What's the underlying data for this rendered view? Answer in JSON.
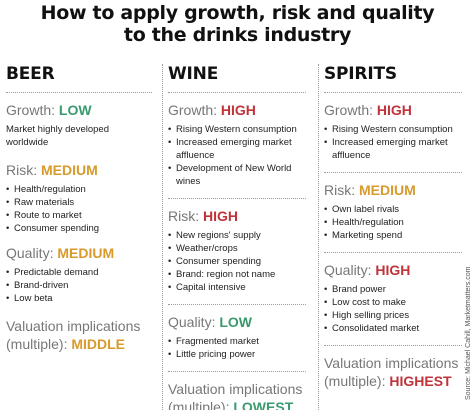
{
  "title": {
    "line1": "How to apply growth, risk and quality",
    "line2": "to the drinks industry"
  },
  "colors": {
    "low": "#3a9a6e",
    "medium": "#d89a2b",
    "high": "#c0333a",
    "heading_grey": "#777777"
  },
  "beer": {
    "name": "BEER",
    "growth": {
      "label": "Growth:",
      "level": "LOW",
      "text": "Market highly developed worldwide"
    },
    "risk": {
      "label": "Risk:",
      "level": "MEDIUM",
      "items": [
        "Health/regulation",
        "Raw materials",
        "Route to market",
        "Consumer spending"
      ]
    },
    "quality": {
      "label": "Quality:",
      "level": "MEDIUM",
      "items": [
        "Predictable demand",
        "Brand-driven",
        "Low beta"
      ]
    },
    "valuation": {
      "line1": "Valuation implications",
      "line2": "(multiple):",
      "level": "MIDDLE"
    }
  },
  "wine": {
    "name": "WINE",
    "growth": {
      "label": "Growth:",
      "level": "HIGH",
      "items": [
        "Rising Western consumption",
        "Increased emerging market affluence",
        "Development of New World wines"
      ]
    },
    "risk": {
      "label": "Risk:",
      "level": "HIGH",
      "items": [
        "New regions' supply",
        "Weather/crops",
        "Consumer spending",
        "Brand: region not name",
        "Capital intensive"
      ]
    },
    "quality": {
      "label": "Quality:",
      "level": "LOW",
      "items": [
        "Fragmented market",
        "Little pricing power"
      ]
    },
    "valuation": {
      "line1": "Valuation implications",
      "line2": "(multiple):",
      "level": "LOWEST"
    }
  },
  "spirits": {
    "name": "SPIRITS",
    "growth": {
      "label": "Growth:",
      "level": "HIGH",
      "items": [
        "Rising Western consumption",
        "Increased emerging market affluence"
      ]
    },
    "risk": {
      "label": "Risk:",
      "level": "MEDIUM",
      "items": [
        "Own label rivals",
        "Health/regulation",
        "Marketing spend"
      ]
    },
    "quality": {
      "label": "Quality:",
      "level": "HIGH",
      "items": [
        "Brand power",
        "Low cost to make",
        "High selling prices",
        "Consolidated market"
      ]
    },
    "valuation": {
      "line1": "Valuation implications",
      "line2": "(multiple):",
      "level": "HIGHEST"
    }
  },
  "source": "Source: Michael Cahill, Marketmatters.com"
}
